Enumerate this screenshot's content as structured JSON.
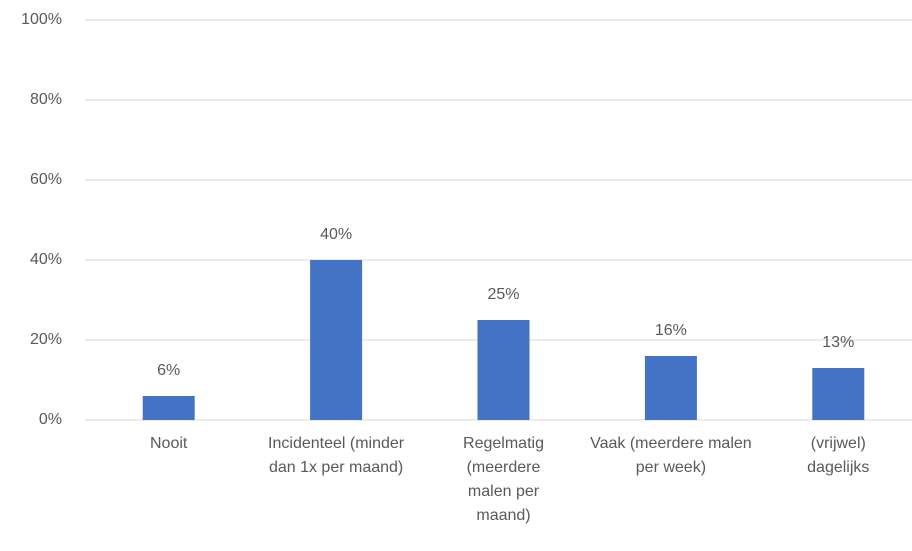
{
  "chart_data": {
    "type": "bar",
    "categories": [
      "Nooit",
      "Incidenteel (minder dan 1x per maand)",
      "Regelmatig (meerdere malen per maand)",
      "Vaak (meerdere malen per week)",
      "(vrijwel) dagelijks"
    ],
    "values": [
      6,
      40,
      25,
      16,
      13
    ],
    "value_labels": [
      "6%",
      "40%",
      "25%",
      "16%",
      "13%"
    ],
    "color": "#4472c4",
    "ylim": [
      0,
      100
    ],
    "yticks": [
      {
        "value": 0,
        "label": "0%"
      },
      {
        "value": 20,
        "label": "20%"
      },
      {
        "value": 40,
        "label": "40%"
      },
      {
        "value": 60,
        "label": "60%"
      },
      {
        "value": 80,
        "label": "80%"
      },
      {
        "value": 100,
        "label": "100%"
      }
    ],
    "grid": true
  }
}
